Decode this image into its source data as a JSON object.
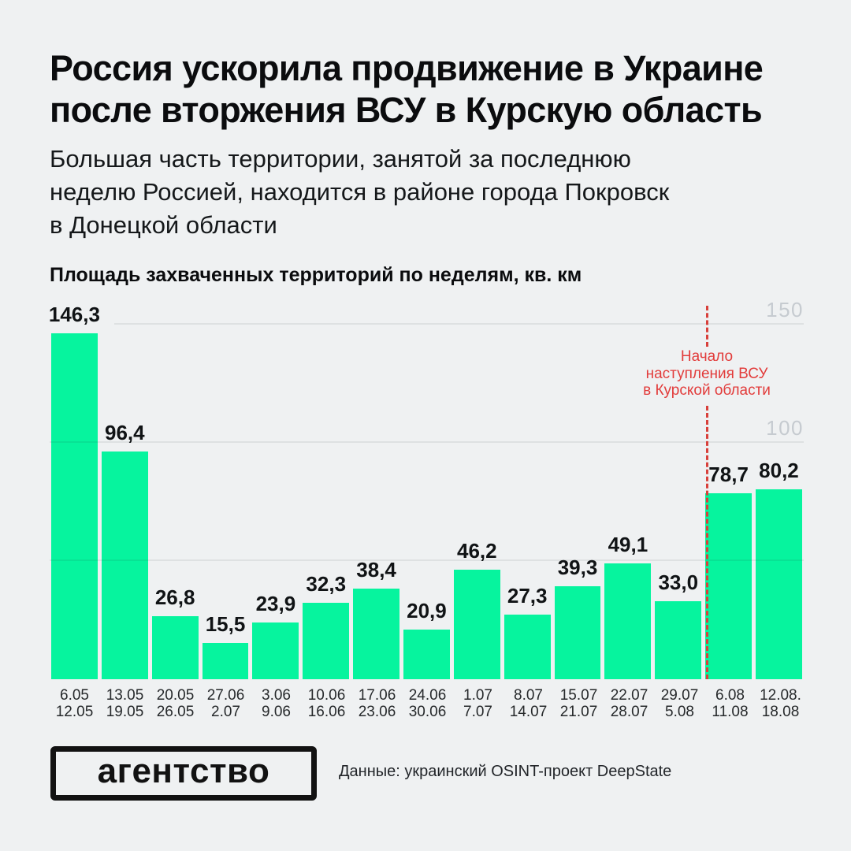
{
  "header": {
    "title": "Россия ускорила продвижение в Украине\nпосле вторжения ВСУ в Курскую область",
    "subtitle": "Большая часть территории, занятой за последнюю\nнеделю Россией, находится в районе города Покровск\nв Донецкой области"
  },
  "chart_data": {
    "type": "bar",
    "title": "Площадь захваченных территорий по неделям, кв. км",
    "ylabel": "кв. км",
    "ylim": [
      0,
      150
    ],
    "grid": true,
    "gridline_values": [
      50,
      100,
      150
    ],
    "yticks": [
      {
        "value": 150,
        "label": "150"
      },
      {
        "value": 100,
        "label": "100"
      }
    ],
    "categories": [
      [
        "6.05",
        "12.05"
      ],
      [
        "13.05",
        "19.05"
      ],
      [
        "20.05",
        "26.05"
      ],
      [
        "27.06",
        "2.07"
      ],
      [
        "3.06",
        "9.06"
      ],
      [
        "10.06",
        "16.06"
      ],
      [
        "17.06",
        "23.06"
      ],
      [
        "24.06",
        "30.06"
      ],
      [
        "1.07",
        "7.07"
      ],
      [
        "8.07",
        "14.07"
      ],
      [
        "15.07",
        "21.07"
      ],
      [
        "22.07",
        "28.07"
      ],
      [
        "29.07",
        "5.08"
      ],
      [
        "6.08",
        "11.08"
      ],
      [
        "12.08.",
        "18.08"
      ]
    ],
    "values": [
      146.3,
      96.4,
      26.8,
      15.5,
      23.9,
      32.3,
      38.4,
      20.9,
      46.2,
      27.3,
      39.3,
      49.1,
      33.0,
      78.7,
      80.2
    ],
    "value_labels": [
      "146,3",
      "96,4",
      "26,8",
      "15,5",
      "23,9",
      "32,3",
      "38,4",
      "20,9",
      "46,2",
      "27,3",
      "39,3",
      "49,1",
      "33,0",
      "78,7",
      "80,2"
    ],
    "bar_color": "#06F49E",
    "background_color": "#EFF1F2",
    "annotation": {
      "text": "Начало\nнаступления ВСУ\nв Курской области",
      "color": "#E23C3B",
      "line_style": "red-dashed-vertical",
      "between_categories": [
        "29.07–5.08",
        "6.08–11.08"
      ]
    }
  },
  "footer": {
    "logo": "агентство",
    "source": "Данные: украинский OSINT-проект DeepState"
  }
}
